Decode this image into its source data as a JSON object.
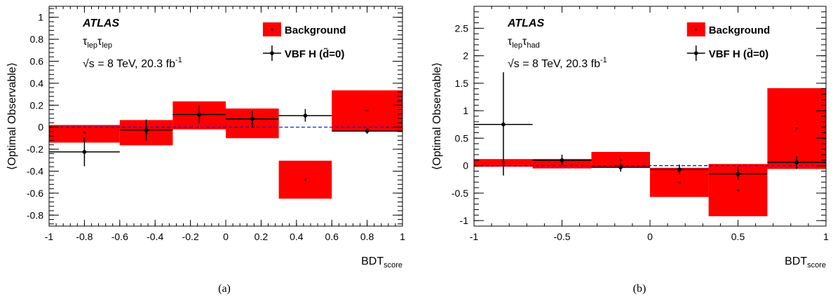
{
  "colors": {
    "background_fill": "#ff0000",
    "signal": "#000000",
    "zero_line": "#0000ff"
  },
  "chart_data": [
    {
      "type": "scatter",
      "panel_label": "(a)",
      "experiment": "ATLAS",
      "channel": {
        "base": "τ",
        "sub1": "lep",
        "sub2": "lep"
      },
      "energy_text": "√s = 8 TeV, 20.3 fb",
      "energy_sup": "-1",
      "ylabel": "⟨Optimal Observable⟩",
      "xlabel_main": "BDT",
      "xlabel_sub": "score",
      "xlim": [
        -1,
        1
      ],
      "ylim": [
        -0.9,
        1.1
      ],
      "xticks": [
        -1,
        -0.8,
        -0.6,
        -0.4,
        -0.2,
        0,
        0.2,
        0.4,
        0.6,
        0.8,
        1
      ],
      "xtick_labels": [
        "-1",
        "-0.8",
        "-0.6",
        "-0.4",
        "-0.2",
        "0",
        "0.2",
        "0.4",
        "0.6",
        "0.8",
        "1"
      ],
      "yticks": [
        -0.8,
        -0.6,
        -0.4,
        -0.2,
        0,
        0.2,
        0.4,
        0.6,
        0.8,
        1
      ],
      "ytick_labels": [
        "-0.8",
        "-0.6",
        "-0.4",
        "-0.2",
        "0",
        "0.2",
        "0.4",
        "0.6",
        "0.8",
        "1"
      ],
      "xminor": 0.04,
      "yminor": 0.04,
      "legend": {
        "background": "Background",
        "signal": "VBF H (d̃=0)",
        "placement": "top-right"
      },
      "background": [
        {
          "x0": -1.0,
          "x1": -0.6,
          "y": -0.05,
          "ylo": -0.14,
          "yhi": 0.02
        },
        {
          "x0": -0.6,
          "x1": -0.3,
          "y": -0.05,
          "ylo": -0.165,
          "yhi": 0.065
        },
        {
          "x0": -0.3,
          "x1": 0.0,
          "y": 0.105,
          "ylo": -0.02,
          "yhi": 0.235
        },
        {
          "x0": 0.0,
          "x1": 0.3,
          "y": 0.035,
          "ylo": -0.1,
          "yhi": 0.17
        },
        {
          "x0": 0.3,
          "x1": 0.6,
          "y": -0.48,
          "ylo": -0.65,
          "yhi": -0.305
        },
        {
          "x0": 0.6,
          "x1": 1.0,
          "y": 0.15,
          "ylo": -0.03,
          "yhi": 0.335
        }
      ],
      "signal": [
        {
          "x": -0.8,
          "y": -0.225,
          "x0": -1.0,
          "x1": -0.6,
          "ylo": -0.355,
          "yhi": -0.09
        },
        {
          "x": -0.45,
          "y": -0.025,
          "x0": -0.6,
          "x1": -0.3,
          "ylo": -0.12,
          "yhi": 0.07
        },
        {
          "x": -0.15,
          "y": 0.115,
          "x0": -0.3,
          "x1": 0.0,
          "ylo": 0.035,
          "yhi": 0.195
        },
        {
          "x": 0.15,
          "y": 0.075,
          "x0": 0.0,
          "x1": 0.3,
          "ylo": 0.0,
          "yhi": 0.15
        },
        {
          "x": 0.45,
          "y": 0.105,
          "x0": 0.3,
          "x1": 0.6,
          "ylo": 0.05,
          "yhi": 0.165
        },
        {
          "x": 0.8,
          "y": -0.035,
          "x0": 0.6,
          "x1": 1.0,
          "ylo": -0.06,
          "yhi": -0.01
        }
      ]
    },
    {
      "type": "scatter",
      "panel_label": "(b)",
      "experiment": "ATLAS",
      "channel": {
        "base": "τ",
        "sub1": "lep",
        "sub2": "had"
      },
      "energy_text": "√s = 8 TeV, 20.3 fb",
      "energy_sup": "-1",
      "ylabel": "⟨Optimal Observable⟩",
      "xlabel_main": "BDT",
      "xlabel_sub": "score",
      "xlim": [
        -1,
        1
      ],
      "ylim": [
        -1.1,
        2.9
      ],
      "xticks": [
        -1,
        -0.5,
        0,
        0.5,
        1
      ],
      "xtick_labels": [
        "-1",
        "-0.5",
        "0",
        "0.5",
        "1"
      ],
      "yticks": [
        -1,
        -0.5,
        0,
        0.5,
        1,
        1.5,
        2,
        2.5
      ],
      "ytick_labels": [
        "-1",
        "-0.5",
        "0",
        "0.5",
        "1",
        "1.5",
        "2",
        "2.5"
      ],
      "xminor": 0.1,
      "yminor": 0.1,
      "legend": {
        "background": "Background",
        "signal": "VBF H (d̃=0)",
        "placement": "top-right"
      },
      "background": [
        {
          "x0": -1.0,
          "x1": -0.667,
          "y": 0.06,
          "ylo": -0.02,
          "yhi": 0.12
        },
        {
          "x0": -0.667,
          "x1": -0.333,
          "y": 0.04,
          "ylo": -0.05,
          "yhi": 0.12
        },
        {
          "x0": -0.333,
          "x1": 0.0,
          "y": 0.11,
          "ylo": -0.03,
          "yhi": 0.25
        },
        {
          "x0": 0.0,
          "x1": 0.333,
          "y": -0.31,
          "ylo": -0.57,
          "yhi": -0.04
        },
        {
          "x0": 0.333,
          "x1": 0.667,
          "y": -0.45,
          "ylo": -0.92,
          "yhi": 0.03
        },
        {
          "x0": 0.667,
          "x1": 1.0,
          "y": 0.68,
          "ylo": -0.06,
          "yhi": 1.41
        }
      ],
      "signal": [
        {
          "x": -0.833,
          "y": 0.75,
          "x0": -1.0,
          "x1": -0.667,
          "ylo": -0.18,
          "yhi": 1.7
        },
        {
          "x": -0.5,
          "y": 0.1,
          "x0": -0.667,
          "x1": -0.333,
          "ylo": 0.02,
          "yhi": 0.2
        },
        {
          "x": -0.167,
          "y": -0.03,
          "x0": -0.333,
          "x1": 0.0,
          "ylo": -0.11,
          "yhi": 0.05
        },
        {
          "x": 0.167,
          "y": -0.07,
          "x0": 0.0,
          "x1": 0.333,
          "ylo": -0.16,
          "yhi": 0.02
        },
        {
          "x": 0.5,
          "y": -0.15,
          "x0": 0.333,
          "x1": 0.667,
          "ylo": -0.26,
          "yhi": -0.03
        },
        {
          "x": 0.833,
          "y": 0.06,
          "x0": 0.667,
          "x1": 1.0,
          "ylo": -0.06,
          "yhi": 0.17
        }
      ]
    }
  ]
}
